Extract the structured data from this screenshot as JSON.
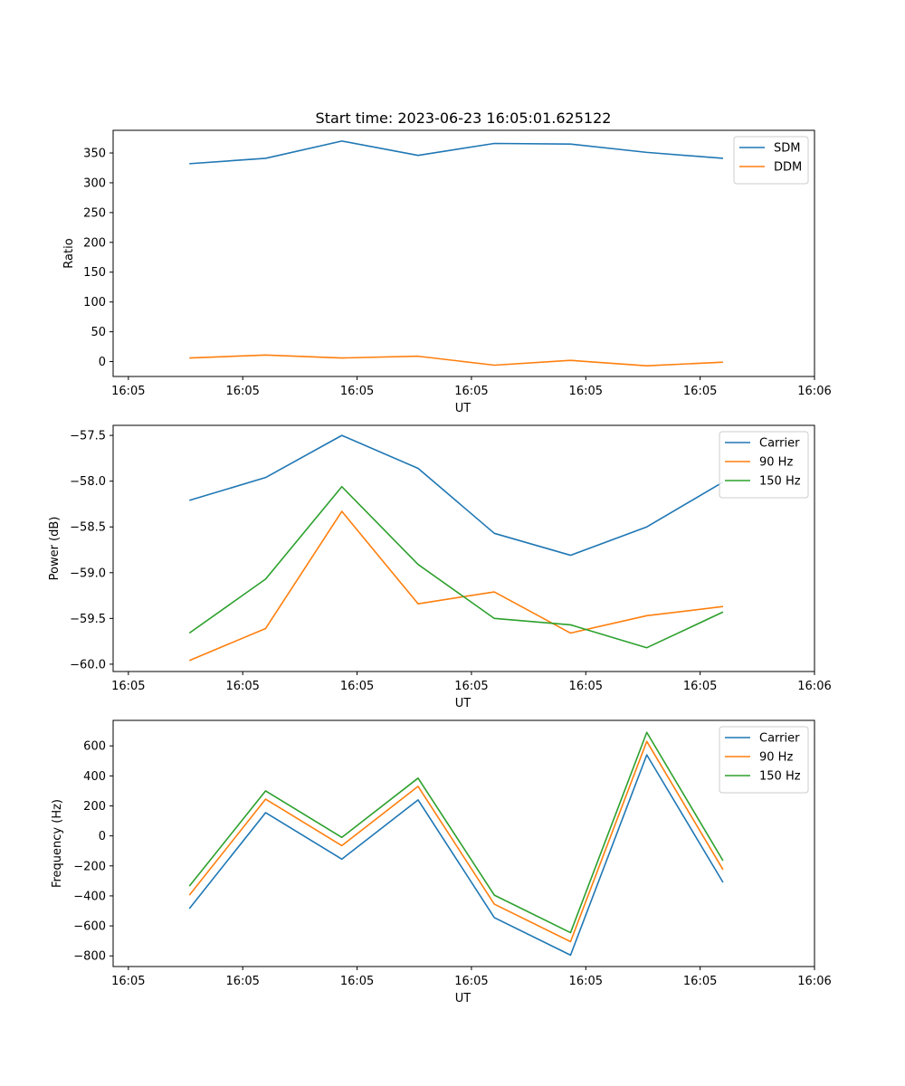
{
  "figure": {
    "title": "Start time: 2023-06-23 16:05:01.625122"
  },
  "chart_data": [
    {
      "type": "line",
      "ylabel": "Ratio",
      "xlabel": "UT",
      "x": [
        1.0,
        2.0,
        3.0,
        4.0,
        5.0,
        6.0,
        7.0,
        8.0
      ],
      "xlim": [
        0.0,
        9.2
      ],
      "ylim": [
        -25,
        388
      ],
      "x_ticks": [
        {
          "value": 0.2,
          "label": "16:05"
        },
        {
          "value": 1.7,
          "label": "16:05"
        },
        {
          "value": 3.2,
          "label": "16:05"
        },
        {
          "value": 4.7,
          "label": "16:05"
        },
        {
          "value": 6.2,
          "label": "16:05"
        },
        {
          "value": 7.7,
          "label": "16:05"
        },
        {
          "value": 9.2,
          "label": "16:06"
        }
      ],
      "y_ticks": [
        0,
        50,
        100,
        150,
        200,
        250,
        300,
        350
      ],
      "legend_position": "upper-right",
      "series": [
        {
          "name": "SDM",
          "color": "#1f77b4",
          "values": [
            332,
            341,
            370,
            346,
            366,
            365,
            351,
            341
          ]
        },
        {
          "name": "DDM",
          "color": "#ff7f0e",
          "values": [
            6,
            11,
            6,
            9,
            -6,
            2,
            -7,
            -1
          ]
        }
      ]
    },
    {
      "type": "line",
      "ylabel": "Power (dB)",
      "xlabel": "UT",
      "x": [
        1.0,
        2.0,
        3.0,
        4.0,
        5.0,
        6.0,
        7.0,
        8.0
      ],
      "xlim": [
        0.0,
        9.2
      ],
      "ylim": [
        -60.08,
        -57.39
      ],
      "x_ticks": [
        {
          "value": 0.2,
          "label": "16:05"
        },
        {
          "value": 1.7,
          "label": "16:05"
        },
        {
          "value": 3.2,
          "label": "16:05"
        },
        {
          "value": 4.7,
          "label": "16:05"
        },
        {
          "value": 6.2,
          "label": "16:05"
        },
        {
          "value": 7.7,
          "label": "16:05"
        },
        {
          "value": 9.2,
          "label": "16:06"
        }
      ],
      "y_ticks": [
        -60.0,
        -59.5,
        -59.0,
        -58.5,
        -58.0,
        -57.5
      ],
      "y_tick_labels": [
        "−60.0",
        "−59.5",
        "−59.0",
        "−58.5",
        "−58.0",
        "−57.5"
      ],
      "legend_position": "upper-right",
      "series": [
        {
          "name": "Carrier",
          "color": "#1f77b4",
          "values": [
            -58.21,
            -57.96,
            -57.5,
            -57.86,
            -58.57,
            -58.81,
            -58.5,
            -58.01
          ]
        },
        {
          "name": "90 Hz",
          "color": "#ff7f0e",
          "values": [
            -59.96,
            -59.61,
            -58.33,
            -59.34,
            -59.21,
            -59.66,
            -59.47,
            -59.37
          ]
        },
        {
          "name": "150 Hz",
          "color": "#2ca02c",
          "values": [
            -59.66,
            -59.07,
            -58.06,
            -58.91,
            -59.5,
            -59.57,
            -59.82,
            -59.43
          ]
        }
      ]
    },
    {
      "type": "line",
      "ylabel": "Frequency (Hz)",
      "xlabel": "UT",
      "x": [
        1.0,
        2.0,
        3.0,
        4.0,
        5.0,
        6.0,
        7.0,
        8.0
      ],
      "xlim": [
        0.0,
        9.2
      ],
      "ylim": [
        -871,
        770
      ],
      "x_ticks": [
        {
          "value": 0.2,
          "label": "16:05"
        },
        {
          "value": 1.7,
          "label": "16:05"
        },
        {
          "value": 3.2,
          "label": "16:05"
        },
        {
          "value": 4.7,
          "label": "16:05"
        },
        {
          "value": 6.2,
          "label": "16:05"
        },
        {
          "value": 7.7,
          "label": "16:05"
        },
        {
          "value": 9.2,
          "label": "16:06"
        }
      ],
      "y_ticks": [
        -800,
        -600,
        -400,
        -200,
        0,
        200,
        400,
        600
      ],
      "y_tick_labels": [
        "−800",
        "−600",
        "−400",
        "−200",
        "0",
        "200",
        "400",
        "600"
      ],
      "legend_position": "upper-right",
      "series": [
        {
          "name": "Carrier",
          "color": "#1f77b4",
          "values": [
            -485,
            155,
            -155,
            240,
            -545,
            -795,
            540,
            -310
          ]
        },
        {
          "name": "90 Hz",
          "color": "#ff7f0e",
          "values": [
            -395,
            245,
            -65,
            330,
            -455,
            -705,
            630,
            -225
          ]
        },
        {
          "name": "150 Hz",
          "color": "#2ca02c",
          "values": [
            -335,
            300,
            -10,
            385,
            -395,
            -645,
            690,
            -165
          ]
        }
      ]
    }
  ]
}
